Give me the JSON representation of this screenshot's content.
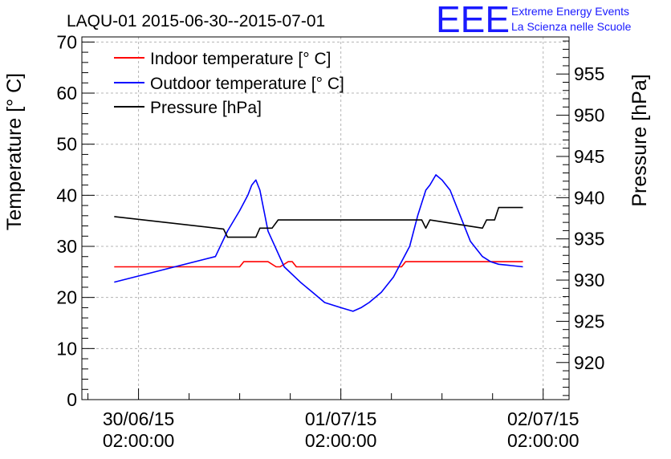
{
  "chart_data": {
    "type": "line",
    "title": "LAQU-01 2015-06-30--2015-07-01",
    "ylabel": "Temperature [° C]",
    "y2label": "Pressure [hPa]",
    "ylim": [
      0,
      71
    ],
    "y2lim": [
      915.5,
      959.5
    ],
    "xlim": [
      -0.14,
      1.064
    ],
    "x_unit": "days since 30/06/15 02:00:00",
    "yticks": [
      0,
      10,
      20,
      30,
      40,
      50,
      60,
      70
    ],
    "y2ticks": [
      920,
      925,
      930,
      935,
      940,
      945,
      950,
      955
    ],
    "xticks": [
      {
        "x": 0,
        "date": "30/06/15",
        "time": "02:00:00"
      },
      {
        "x": 0.5,
        "date": "01/07/15",
        "time": "02:00:00"
      },
      {
        "x": 1.0,
        "date": "02/07/15",
        "time": "02:00:00"
      }
    ],
    "legend_position": "top-left",
    "grid": true,
    "series": [
      {
        "name": "Indoor temperature [° C]",
        "color": "#ff0000",
        "axis": "left",
        "x": [
          -0.06,
          0.25,
          0.26,
          0.32,
          0.34,
          0.35,
          0.37,
          0.38,
          0.39,
          0.4,
          0.65,
          0.66,
          0.95
        ],
        "y": [
          26,
          26,
          27,
          27,
          26,
          26,
          27,
          27,
          26,
          26,
          26,
          27,
          27
        ]
      },
      {
        "name": "Outdoor temperature [° C]",
        "color": "#0000ff",
        "axis": "left",
        "x": [
          -0.06,
          0.19,
          0.22,
          0.25,
          0.27,
          0.28,
          0.29,
          0.3,
          0.32,
          0.36,
          0.4,
          0.43,
          0.46,
          0.5,
          0.53,
          0.55,
          0.56,
          0.57,
          0.6,
          0.63,
          0.67,
          0.69,
          0.71,
          0.72,
          0.735,
          0.75,
          0.77,
          0.8,
          0.82,
          0.85,
          0.87,
          0.89,
          0.95
        ],
        "y": [
          23,
          28,
          33,
          37,
          40,
          42,
          43,
          41,
          33,
          26,
          23,
          21,
          19,
          18,
          17.3,
          18,
          18.5,
          19,
          21,
          24,
          30,
          36,
          41,
          42,
          44,
          43,
          41,
          35,
          31,
          28,
          27,
          26.5,
          26
        ]
      },
      {
        "name": "Pressure [hPa]",
        "color": "#000000",
        "axis": "right",
        "x": [
          -0.06,
          0.21,
          0.22,
          0.29,
          0.3,
          0.33,
          0.345,
          0.35,
          0.7,
          0.71,
          0.72,
          0.85,
          0.86,
          0.88,
          0.89,
          0.95
        ],
        "y": [
          937.7,
          936.2,
          935.2,
          935.2,
          936.3,
          936.3,
          937.3,
          937.3,
          937.3,
          936.3,
          937.3,
          936.3,
          937.3,
          937.3,
          938.8,
          938.8
        ]
      }
    ]
  },
  "logo": {
    "text": "EEE",
    "line1": "Extreme Energy Events",
    "line2": "La Scienza nelle Scuole",
    "color": "#1a1aff"
  }
}
